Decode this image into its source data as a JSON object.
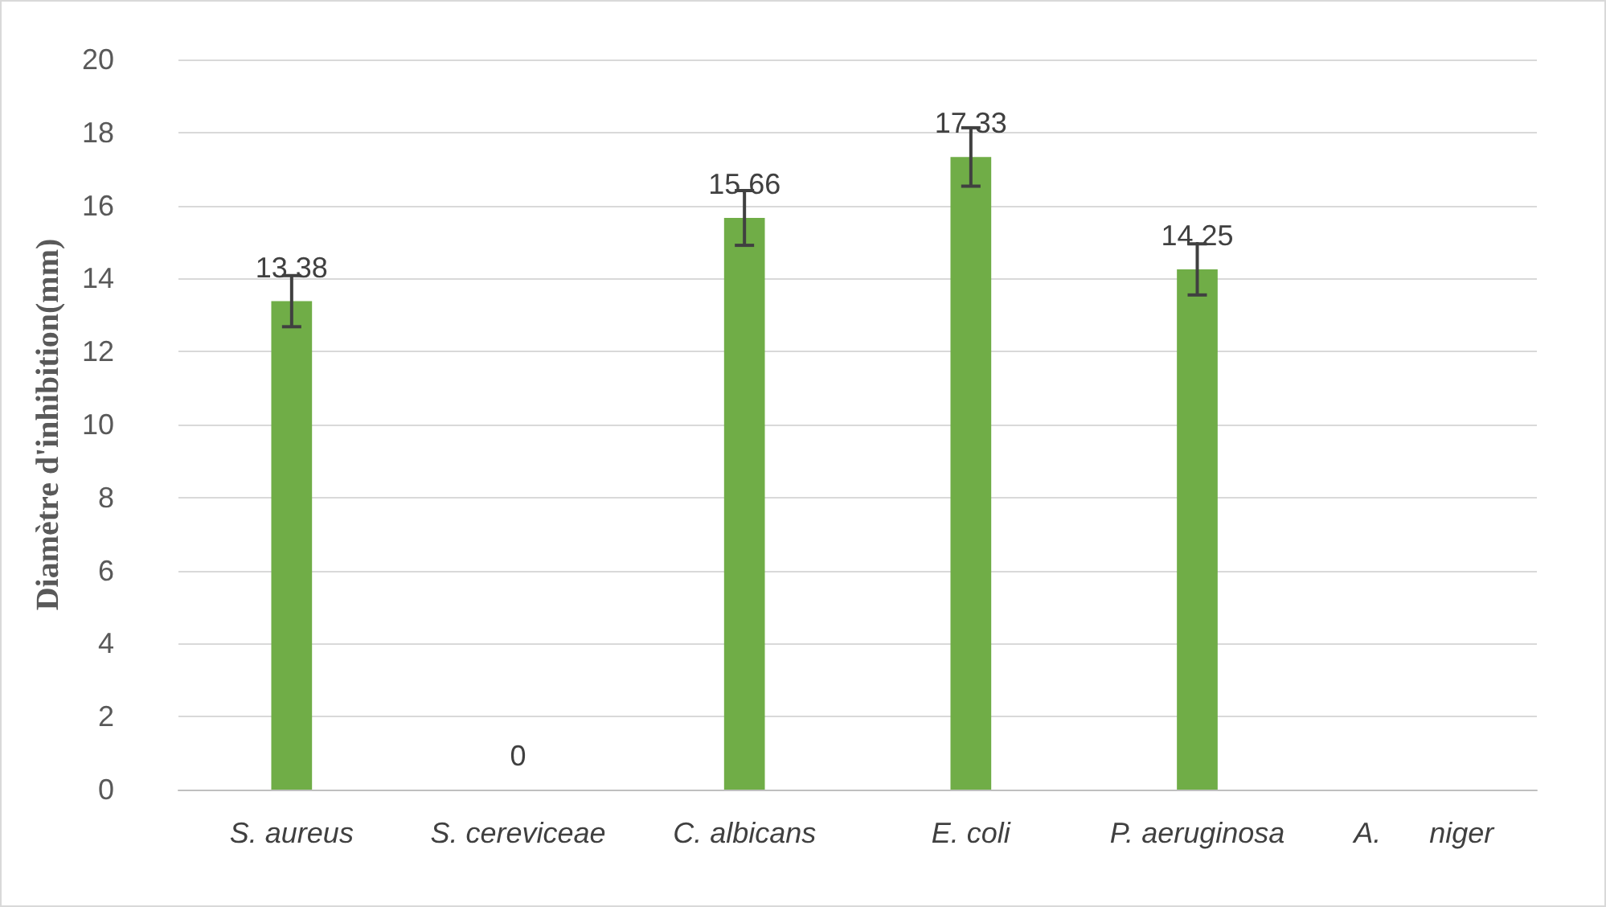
{
  "chart_data": {
    "type": "bar",
    "ylabel": "Diamètre d'inhibition(mm)",
    "categories": [
      "S. aureus",
      "S. cereviceae",
      "C. albicans",
      "E. coli",
      "P. aeruginosa",
      "A.      niger"
    ],
    "values": [
      13.38,
      0,
      15.66,
      17.33,
      14.25,
      null
    ],
    "value_labels": [
      "13.38",
      "0",
      "15.66",
      "17.33",
      "14.25",
      null
    ],
    "errors": [
      0.7,
      null,
      0.75,
      0.8,
      0.7,
      null
    ],
    "color": "#70ad47",
    "ylim": [
      0,
      20
    ],
    "yticks": [
      0,
      2,
      4,
      6,
      8,
      10,
      12,
      14,
      16,
      18,
      20
    ],
    "grid": "y"
  }
}
